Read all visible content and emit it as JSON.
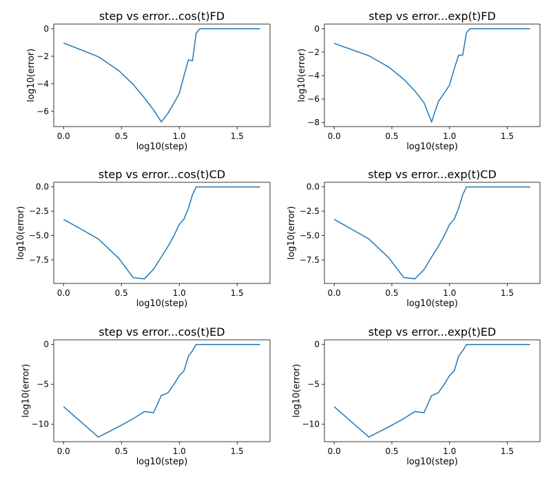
{
  "chart_data": [
    {
      "type": "line",
      "title": "step vs error...cos(t)FD",
      "xlabel": "log10(step)",
      "ylabel": "log10(error)",
      "x": [
        0,
        0.301,
        0.477,
        0.602,
        0.699,
        0.778,
        0.845,
        0.903,
        0.954,
        1.0,
        1.041,
        1.079,
        1.114,
        1.146,
        1.176,
        1.699
      ],
      "y": [
        -1.03,
        -2.03,
        -3.04,
        -4.05,
        -5.03,
        -5.9,
        -6.77,
        -6.13,
        -5.4,
        -4.7,
        -3.4,
        -2.26,
        -2.33,
        -0.34,
        0,
        0
      ],
      "xticks": [
        0,
        0.5,
        1,
        1.5
      ],
      "xticklabels": [
        "0.0",
        "0.5",
        "1.0",
        "1.5"
      ],
      "yticks": [
        0,
        -2,
        -4,
        -6
      ],
      "yticklabels": [
        "0",
        "−2",
        "−4",
        "−6"
      ],
      "color": "#1f77b4"
    },
    {
      "type": "line",
      "title": "step vs error...exp(t)FD",
      "xlabel": "log10(step)",
      "ylabel": "log10(error)",
      "x": [
        0,
        0.301,
        0.477,
        0.602,
        0.699,
        0.778,
        0.845,
        0.903,
        0.954,
        1.0,
        1.041,
        1.079,
        1.114,
        1.146,
        1.176,
        1.699
      ],
      "y": [
        -1.25,
        -2.3,
        -3.3,
        -4.3,
        -5.3,
        -6.3,
        -7.95,
        -6.2,
        -5.5,
        -4.8,
        -3.4,
        -2.25,
        -2.25,
        -0.35,
        0,
        0
      ],
      "xticks": [
        0,
        0.5,
        1,
        1.5
      ],
      "xticklabels": [
        "0.0",
        "0.5",
        "1.0",
        "1.5"
      ],
      "yticks": [
        0,
        -2,
        -4,
        -6,
        -8
      ],
      "yticklabels": [
        "0",
        "−2",
        "−4",
        "−6",
        "−8"
      ],
      "color": "#1f77b4"
    },
    {
      "type": "line",
      "title": "step vs error...cos(t)CD",
      "xlabel": "log10(step)",
      "ylabel": "log10(error)",
      "x": [
        0,
        0.301,
        0.477,
        0.602,
        0.699,
        0.778,
        0.845,
        0.903,
        0.954,
        1.0,
        1.041,
        1.079,
        1.114,
        1.146,
        1.699
      ],
      "y": [
        -3.33,
        -5.34,
        -7.33,
        -9.32,
        -9.44,
        -8.45,
        -7.2,
        -6.1,
        -5.0,
        -3.86,
        -3.3,
        -2.18,
        -0.82,
        0,
        0
      ],
      "xticks": [
        0,
        0.5,
        1,
        1.5
      ],
      "xticklabels": [
        "0.0",
        "0.5",
        "1.0",
        "1.5"
      ],
      "yticks": [
        0,
        -2.5,
        -5,
        -7.5
      ],
      "yticklabels": [
        "0.0",
        "−2.5",
        "−5.0",
        "−7.5"
      ],
      "color": "#1f77b4"
    },
    {
      "type": "line",
      "title": "step vs error...exp(t)CD",
      "xlabel": "log10(step)",
      "ylabel": "log10(error)",
      "x": [
        0,
        0.301,
        0.477,
        0.602,
        0.699,
        0.778,
        0.845,
        0.903,
        0.954,
        1.0,
        1.041,
        1.079,
        1.114,
        1.146,
        1.699
      ],
      "y": [
        -3.33,
        -5.34,
        -7.33,
        -9.3,
        -9.44,
        -8.5,
        -7.2,
        -6.1,
        -5.0,
        -3.86,
        -3.3,
        -2.18,
        -0.82,
        0,
        0
      ],
      "xticks": [
        0,
        0.5,
        1,
        1.5
      ],
      "xticklabels": [
        "0.0",
        "0.5",
        "1.0",
        "1.5"
      ],
      "yticks": [
        0,
        -2.5,
        -5,
        -7.5
      ],
      "yticklabels": [
        "0.0",
        "−2.5",
        "−5.0",
        "−7.5"
      ],
      "color": "#1f77b4"
    },
    {
      "type": "line",
      "title": "step vs error...cos(t)ED",
      "xlabel": "log10(step)",
      "ylabel": "log10(error)",
      "x": [
        0,
        0.301,
        0.477,
        0.602,
        0.699,
        0.778,
        0.845,
        0.903,
        0.954,
        1.0,
        1.041,
        1.079,
        1.114,
        1.146,
        1.699
      ],
      "y": [
        -7.8,
        -11.6,
        -10.3,
        -9.3,
        -8.4,
        -8.55,
        -6.4,
        -6.05,
        -5.0,
        -3.9,
        -3.3,
        -1.45,
        -0.8,
        0,
        0
      ],
      "xticks": [
        0,
        0.5,
        1,
        1.5
      ],
      "xticklabels": [
        "0.0",
        "0.5",
        "1.0",
        "1.5"
      ],
      "yticks": [
        0,
        -5,
        -10
      ],
      "yticklabels": [
        "0",
        "−5",
        "−10"
      ],
      "color": "#1f77b4"
    },
    {
      "type": "line",
      "title": "step vs error...exp(t)ED",
      "xlabel": "log10(step)",
      "ylabel": "log10(error)",
      "x": [
        0,
        0.301,
        0.477,
        0.602,
        0.699,
        0.778,
        0.845,
        0.903,
        0.954,
        1.0,
        1.041,
        1.079,
        1.114,
        1.146,
        1.699
      ],
      "y": [
        -7.8,
        -11.6,
        -10.3,
        -9.3,
        -8.4,
        -8.55,
        -6.4,
        -6.05,
        -5.0,
        -3.9,
        -3.3,
        -1.45,
        -0.8,
        0,
        0
      ],
      "xticks": [
        0,
        0.5,
        1,
        1.5
      ],
      "xticklabels": [
        "0.0",
        "0.5",
        "1.0",
        "1.5"
      ],
      "yticks": [
        0,
        -5,
        -10
      ],
      "yticklabels": [
        "0",
        "−5",
        "−10"
      ],
      "color": "#1f77b4"
    }
  ]
}
